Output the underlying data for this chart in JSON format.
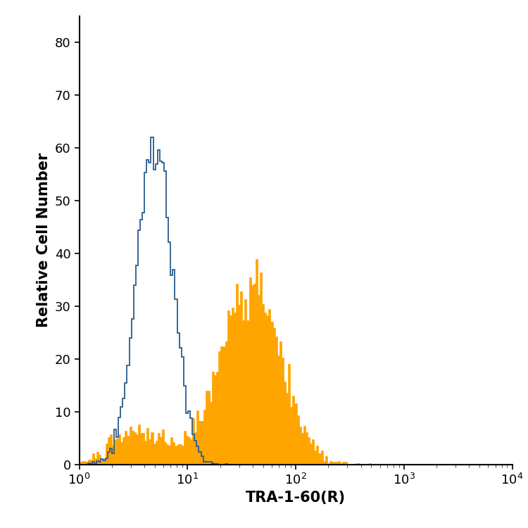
{
  "title": "",
  "xlabel": "TRA-1-60(R)",
  "ylabel": "Relative Cell Number",
  "xlim": [
    1,
    10000
  ],
  "ylim": [
    0,
    85
  ],
  "yticks": [
    0,
    10,
    20,
    30,
    40,
    50,
    60,
    70,
    80
  ],
  "blue_color": "#2B5C8E",
  "orange_color": "#FFA500",
  "background_color": "#FFFFFF",
  "xlabel_fontsize": 15,
  "ylabel_fontsize": 15,
  "tick_fontsize": 13,
  "figsize": [
    7.5,
    7.5
  ],
  "dpi": 100
}
